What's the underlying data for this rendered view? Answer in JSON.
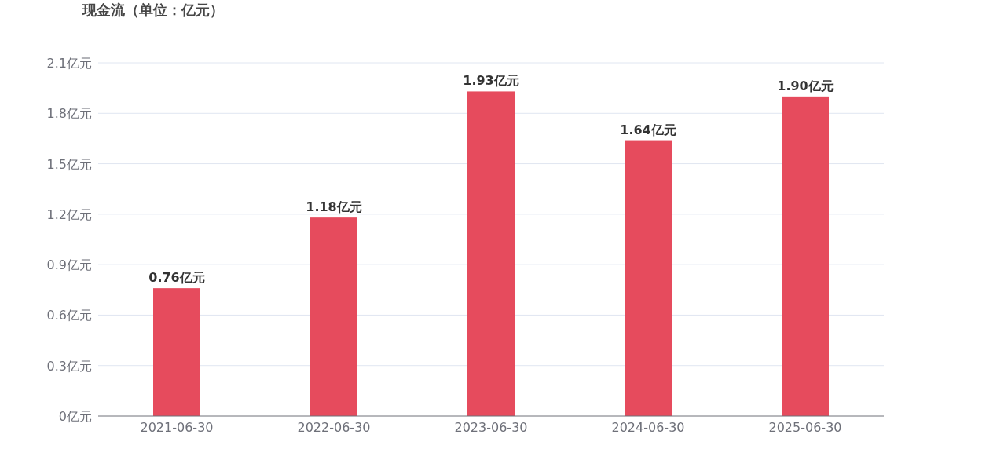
{
  "chart_data": {
    "type": "bar",
    "title": "现金流（单位：亿元）",
    "categories": [
      "2021-06-30",
      "2022-06-30",
      "2023-06-30",
      "2024-06-30",
      "2025-06-30"
    ],
    "values": [
      0.76,
      1.18,
      1.93,
      1.64,
      1.9
    ],
    "value_labels": [
      "0.76亿元",
      "1.18亿元",
      "1.93亿元",
      "1.64亿元",
      "1.90亿元"
    ],
    "color": "#e64b5d",
    "ylim": [
      0,
      2.1
    ],
    "yticks": [
      {
        "value": 0,
        "label": "0亿元"
      },
      {
        "value": 0.3,
        "label": "0.3亿元"
      },
      {
        "value": 0.6,
        "label": "0.6亿元"
      },
      {
        "value": 0.9,
        "label": "0.9亿元"
      },
      {
        "value": 1.2,
        "label": "1.2亿元"
      },
      {
        "value": 1.5,
        "label": "1.5亿元"
      },
      {
        "value": 1.8,
        "label": "1.8亿元"
      },
      {
        "value": 2.1,
        "label": "2.1亿元"
      }
    ],
    "grid": "y"
  }
}
